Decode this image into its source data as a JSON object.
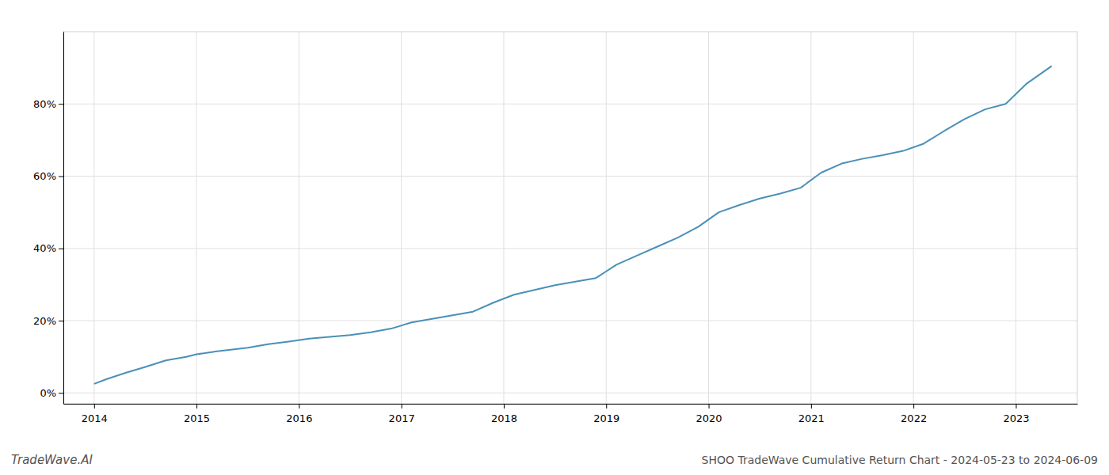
{
  "chart_data": {
    "type": "line",
    "title": "SHOO TradeWave Cumulative Return Chart - 2024-05-23 to 2024-06-09",
    "annotations": [
      "TradeWave.AI"
    ],
    "x": [
      2014.0,
      2014.12,
      2014.3,
      2014.5,
      2014.7,
      2014.9,
      2015.0,
      2015.2,
      2015.5,
      2015.7,
      2015.9,
      2016.1,
      2016.3,
      2016.5,
      2016.7,
      2016.9,
      2017.1,
      2017.3,
      2017.5,
      2017.7,
      2017.9,
      2018.1,
      2018.3,
      2018.5,
      2018.7,
      2018.9,
      2019.1,
      2019.3,
      2019.5,
      2019.7,
      2019.9,
      2020.1,
      2020.3,
      2020.5,
      2020.7,
      2020.9,
      2021.1,
      2021.3,
      2021.5,
      2021.7,
      2021.9,
      2022.1,
      2022.3,
      2022.5,
      2022.7,
      2022.9,
      2023.1,
      2023.35
    ],
    "values": [
      0.025,
      0.038,
      0.055,
      0.072,
      0.09,
      0.1,
      0.107,
      0.115,
      0.125,
      0.135,
      0.142,
      0.15,
      0.155,
      0.16,
      0.168,
      0.178,
      0.195,
      0.205,
      0.215,
      0.225,
      0.25,
      0.272,
      0.285,
      0.298,
      0.308,
      0.318,
      0.355,
      0.38,
      0.405,
      0.43,
      0.46,
      0.5,
      0.52,
      0.538,
      0.552,
      0.568,
      0.61,
      0.635,
      0.648,
      0.658,
      0.67,
      0.69,
      0.725,
      0.758,
      0.785,
      0.8,
      0.855,
      0.905
    ],
    "color": "#4a90b8",
    "xlim": [
      2013.7,
      2023.6
    ],
    "ylim": [
      -0.03,
      1.0
    ],
    "xticks": [
      2014,
      2015,
      2016,
      2017,
      2018,
      2019,
      2020,
      2021,
      2022,
      2023
    ],
    "yticks": [
      {
        "value": 0.0,
        "label": "0%"
      },
      {
        "value": 0.2,
        "label": "20%"
      },
      {
        "value": 0.4,
        "label": "40%"
      },
      {
        "value": 0.6,
        "label": "60%"
      },
      {
        "value": 0.8,
        "label": "80%"
      }
    ],
    "grid": true
  }
}
